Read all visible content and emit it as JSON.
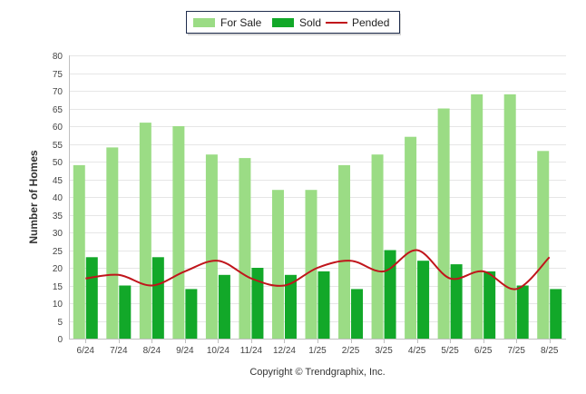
{
  "chart_data": {
    "type": "bar",
    "categories": [
      "6/24",
      "7/24",
      "8/24",
      "9/24",
      "10/24",
      "11/24",
      "12/24",
      "1/25",
      "2/25",
      "3/25",
      "4/25",
      "5/25",
      "6/25",
      "7/25",
      "8/25"
    ],
    "series": [
      {
        "name": "For Sale",
        "type": "bar",
        "color": "#9bdc85",
        "values": [
          49,
          54,
          61,
          60,
          52,
          51,
          42,
          42,
          49,
          52,
          57,
          65,
          69,
          69,
          53
        ]
      },
      {
        "name": "Sold",
        "type": "bar",
        "color": "#12a829",
        "values": [
          23,
          15,
          23,
          14,
          18,
          20,
          18,
          19,
          14,
          25,
          22,
          21,
          19,
          15,
          14
        ]
      },
      {
        "name": "Pended",
        "type": "line",
        "color": "#c0151b",
        "values": [
          17,
          18,
          15,
          19,
          22,
          17,
          15,
          20,
          22,
          19,
          25,
          17,
          19,
          14,
          23
        ]
      }
    ],
    "title": "",
    "xlabel": "",
    "ylabel": "Number of Homes",
    "ylim": [
      0,
      80
    ],
    "yticks": [
      0,
      5,
      10,
      15,
      20,
      25,
      30,
      35,
      40,
      45,
      50,
      55,
      60,
      65,
      70,
      75,
      80
    ],
    "grid": true,
    "legend": "top-center"
  },
  "credit": "Copyright © Trendgraphix, Inc."
}
